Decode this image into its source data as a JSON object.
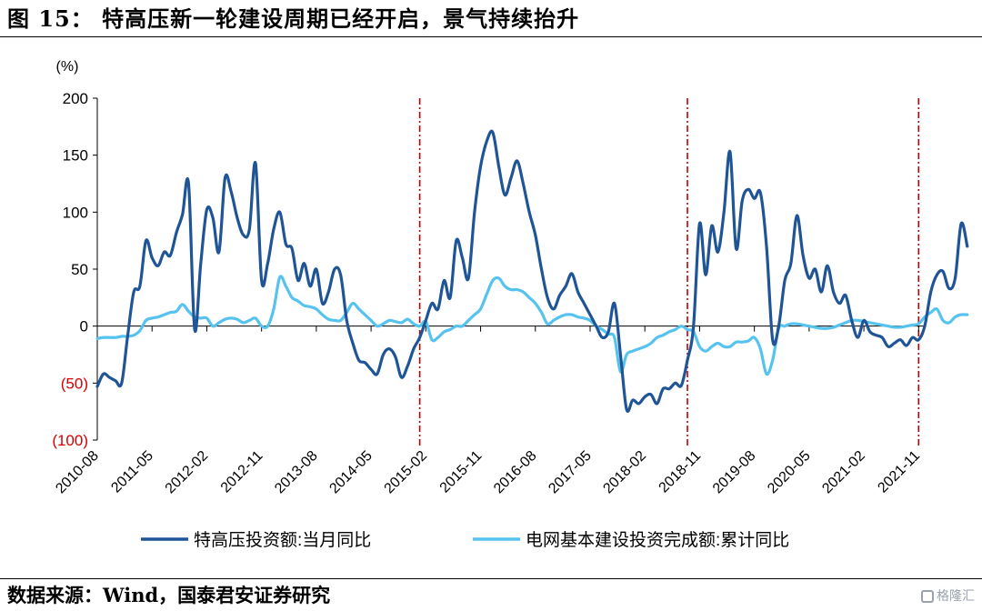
{
  "figure": {
    "title": "图 15：  特高压新一轮建设周期已经开启，景气持续抬升",
    "source": "数据来源：Wind，国泰君安证券研究",
    "watermark": "格隆汇"
  },
  "colors": {
    "series_dark": "#1f5597",
    "series_light": "#56c3ee",
    "negative_tick": "#d40000",
    "divider": "#c00000"
  },
  "chart_data": {
    "type": "line",
    "y_unit": "(%)",
    "ylim": [
      -100,
      200
    ],
    "y_ticks": [
      {
        "value": 200,
        "label": "200",
        "negative": false
      },
      {
        "value": 150,
        "label": "150",
        "negative": false
      },
      {
        "value": 100,
        "label": "100",
        "negative": false
      },
      {
        "value": 50,
        "label": "50",
        "negative": false
      },
      {
        "value": 0,
        "label": "0",
        "negative": false
      },
      {
        "value": -50,
        "label": "(50)",
        "negative": true
      },
      {
        "value": -100,
        "label": "(100)",
        "negative": true
      }
    ],
    "x_ticks": [
      "2010-08",
      "2011-05",
      "2012-02",
      "2012-11",
      "2013-08",
      "2014-05",
      "2015-02",
      "2015-11",
      "2016-08",
      "2017-05",
      "2018-02",
      "2018-11",
      "2019-08",
      "2020-05",
      "2021-02",
      "2021-11"
    ],
    "x_tick_every_months": 9,
    "x_start": "2010-08",
    "x_months": 136,
    "grid": false,
    "legend_position": "bottom",
    "vertical_markers": [
      "2015-01",
      "2018-09",
      "2021-11"
    ],
    "series": [
      {
        "name": "特高压投资额:当月同比",
        "color": "#1f5597",
        "points": [
          [
            "2010-08",
            -53
          ],
          [
            "2010-09",
            -42
          ],
          [
            "2010-10",
            -45
          ],
          [
            "2010-11",
            -48
          ],
          [
            "2010-12",
            -50
          ],
          [
            "2011-01",
            -8
          ],
          [
            "2011-02",
            30
          ],
          [
            "2011-03",
            35
          ],
          [
            "2011-04",
            75
          ],
          [
            "2011-05",
            60
          ],
          [
            "2011-06",
            53
          ],
          [
            "2011-07",
            65
          ],
          [
            "2011-08",
            62
          ],
          [
            "2011-09",
            82
          ],
          [
            "2011-10",
            98
          ],
          [
            "2011-11",
            125
          ],
          [
            "2011-12",
            -3
          ],
          [
            "2012-01",
            55
          ],
          [
            "2012-02",
            102
          ],
          [
            "2012-03",
            95
          ],
          [
            "2012-04",
            65
          ],
          [
            "2012-05",
            130
          ],
          [
            "2012-06",
            118
          ],
          [
            "2012-07",
            95
          ],
          [
            "2012-08",
            80
          ],
          [
            "2012-09",
            85
          ],
          [
            "2012-10",
            143
          ],
          [
            "2012-11",
            40
          ],
          [
            "2012-12",
            55
          ],
          [
            "2013-01",
            85
          ],
          [
            "2013-02",
            100
          ],
          [
            "2013-03",
            72
          ],
          [
            "2013-04",
            68
          ],
          [
            "2013-05",
            40
          ],
          [
            "2013-06",
            55
          ],
          [
            "2013-07",
            35
          ],
          [
            "2013-08",
            50
          ],
          [
            "2013-09",
            20
          ],
          [
            "2013-10",
            30
          ],
          [
            "2013-11",
            50
          ],
          [
            "2013-12",
            45
          ],
          [
            "2014-01",
            5
          ],
          [
            "2014-02",
            -15
          ],
          [
            "2014-03",
            -30
          ],
          [
            "2014-04",
            -32
          ],
          [
            "2014-05",
            -38
          ],
          [
            "2014-06",
            -42
          ],
          [
            "2014-07",
            -25
          ],
          [
            "2014-08",
            -20
          ],
          [
            "2014-09",
            -27
          ],
          [
            "2014-10",
            -45
          ],
          [
            "2014-11",
            -35
          ],
          [
            "2014-12",
            -20
          ],
          [
            "2015-01",
            -10
          ],
          [
            "2015-02",
            5
          ],
          [
            "2015-03",
            20
          ],
          [
            "2015-04",
            15
          ],
          [
            "2015-05",
            40
          ],
          [
            "2015-06",
            25
          ],
          [
            "2015-07",
            75
          ],
          [
            "2015-08",
            60
          ],
          [
            "2015-09",
            42
          ],
          [
            "2015-10",
            100
          ],
          [
            "2015-11",
            140
          ],
          [
            "2015-12",
            162
          ],
          [
            "2016-01",
            170
          ],
          [
            "2016-02",
            140
          ],
          [
            "2016-03",
            115
          ],
          [
            "2016-04",
            130
          ],
          [
            "2016-05",
            145
          ],
          [
            "2016-06",
            125
          ],
          [
            "2016-07",
            100
          ],
          [
            "2016-08",
            80
          ],
          [
            "2016-09",
            50
          ],
          [
            "2016-10",
            25
          ],
          [
            "2016-11",
            15
          ],
          [
            "2016-12",
            27
          ],
          [
            "2017-01",
            35
          ],
          [
            "2017-02",
            46
          ],
          [
            "2017-03",
            30
          ],
          [
            "2017-04",
            20
          ],
          [
            "2017-05",
            10
          ],
          [
            "2017-06",
            0
          ],
          [
            "2017-07",
            -10
          ],
          [
            "2017-08",
            -5
          ],
          [
            "2017-09",
            20
          ],
          [
            "2017-10",
            -25
          ],
          [
            "2017-11",
            -73
          ],
          [
            "2017-12",
            -65
          ],
          [
            "2018-01",
            -68
          ],
          [
            "2018-02",
            -62
          ],
          [
            "2018-03",
            -60
          ],
          [
            "2018-04",
            -68
          ],
          [
            "2018-05",
            -55
          ],
          [
            "2018-06",
            -55
          ],
          [
            "2018-07",
            -50
          ],
          [
            "2018-08",
            -52
          ],
          [
            "2018-09",
            -30
          ],
          [
            "2018-10",
            0
          ],
          [
            "2018-11",
            90
          ],
          [
            "2018-12",
            45
          ],
          [
            "2019-01",
            88
          ],
          [
            "2019-02",
            65
          ],
          [
            "2019-03",
            100
          ],
          [
            "2019-04",
            153
          ],
          [
            "2019-05",
            68
          ],
          [
            "2019-06",
            110
          ],
          [
            "2019-07",
            120
          ],
          [
            "2019-08",
            112
          ],
          [
            "2019-09",
            117
          ],
          [
            "2019-10",
            70
          ],
          [
            "2019-11",
            -12
          ],
          [
            "2019-12",
            0
          ],
          [
            "2020-01",
            40
          ],
          [
            "2020-02",
            55
          ],
          [
            "2020-03",
            97
          ],
          [
            "2020-04",
            62
          ],
          [
            "2020-05",
            42
          ],
          [
            "2020-06",
            50
          ],
          [
            "2020-07",
            30
          ],
          [
            "2020-08",
            53
          ],
          [
            "2020-09",
            30
          ],
          [
            "2020-10",
            20
          ],
          [
            "2020-11",
            27
          ],
          [
            "2020-12",
            5
          ],
          [
            "2021-01",
            -10
          ],
          [
            "2021-02",
            5
          ],
          [
            "2021-03",
            -5
          ],
          [
            "2021-04",
            -8
          ],
          [
            "2021-05",
            -10
          ],
          [
            "2021-06",
            -18
          ],
          [
            "2021-07",
            -15
          ],
          [
            "2021-08",
            -12
          ],
          [
            "2021-09",
            -17
          ],
          [
            "2021-10",
            -10
          ],
          [
            "2021-11",
            -12
          ],
          [
            "2021-12",
            0
          ],
          [
            "2022-01",
            30
          ],
          [
            "2022-02",
            45
          ],
          [
            "2022-03",
            48
          ],
          [
            "2022-04",
            33
          ],
          [
            "2022-05",
            42
          ],
          [
            "2022-06",
            90
          ],
          [
            "2022-07",
            70
          ]
        ]
      },
      {
        "name": "电网基本建设投资完成额:累计同比",
        "color": "#56c3ee",
        "points": [
          [
            "2010-08",
            -11
          ],
          [
            "2010-09",
            -10
          ],
          [
            "2010-10",
            -10
          ],
          [
            "2010-11",
            -10
          ],
          [
            "2010-12",
            -9
          ],
          [
            "2011-01",
            -9
          ],
          [
            "2011-02",
            -8
          ],
          [
            "2011-03",
            -4
          ],
          [
            "2011-04",
            5
          ],
          [
            "2011-05",
            7
          ],
          [
            "2011-06",
            8
          ],
          [
            "2011-07",
            10
          ],
          [
            "2011-08",
            12
          ],
          [
            "2011-09",
            13
          ],
          [
            "2011-10",
            19
          ],
          [
            "2011-11",
            13
          ],
          [
            "2011-12",
            8
          ],
          [
            "2012-01",
            7
          ],
          [
            "2012-02",
            7
          ],
          [
            "2012-03",
            0
          ],
          [
            "2012-04",
            3
          ],
          [
            "2012-05",
            6
          ],
          [
            "2012-06",
            7
          ],
          [
            "2012-07",
            6
          ],
          [
            "2012-08",
            3
          ],
          [
            "2012-09",
            5
          ],
          [
            "2012-10",
            7
          ],
          [
            "2012-11",
            0
          ],
          [
            "2012-12",
            0
          ],
          [
            "2013-01",
            15
          ],
          [
            "2013-02",
            43
          ],
          [
            "2013-03",
            35
          ],
          [
            "2013-04",
            25
          ],
          [
            "2013-05",
            22
          ],
          [
            "2013-06",
            18
          ],
          [
            "2013-07",
            17
          ],
          [
            "2013-08",
            15
          ],
          [
            "2013-09",
            10
          ],
          [
            "2013-10",
            6
          ],
          [
            "2013-11",
            5
          ],
          [
            "2013-12",
            5
          ],
          [
            "2014-01",
            12
          ],
          [
            "2014-02",
            20
          ],
          [
            "2014-03",
            15
          ],
          [
            "2014-04",
            10
          ],
          [
            "2014-05",
            5
          ],
          [
            "2014-06",
            0
          ],
          [
            "2014-07",
            2
          ],
          [
            "2014-08",
            5
          ],
          [
            "2014-09",
            4
          ],
          [
            "2014-10",
            3
          ],
          [
            "2014-11",
            6
          ],
          [
            "2014-12",
            2
          ],
          [
            "2015-01",
            0
          ],
          [
            "2015-02",
            4
          ],
          [
            "2015-03",
            -12
          ],
          [
            "2015-04",
            -10
          ],
          [
            "2015-05",
            -5
          ],
          [
            "2015-06",
            -3
          ],
          [
            "2015-07",
            0
          ],
          [
            "2015-08",
            0
          ],
          [
            "2015-09",
            5
          ],
          [
            "2015-10",
            10
          ],
          [
            "2015-11",
            15
          ],
          [
            "2015-12",
            28
          ],
          [
            "2016-01",
            40
          ],
          [
            "2016-02",
            42
          ],
          [
            "2016-03",
            35
          ],
          [
            "2016-04",
            32
          ],
          [
            "2016-05",
            32
          ],
          [
            "2016-06",
            30
          ],
          [
            "2016-07",
            25
          ],
          [
            "2016-08",
            20
          ],
          [
            "2016-09",
            12
          ],
          [
            "2016-10",
            2
          ],
          [
            "2016-11",
            5
          ],
          [
            "2016-12",
            8
          ],
          [
            "2017-01",
            10
          ],
          [
            "2017-02",
            10
          ],
          [
            "2017-03",
            8
          ],
          [
            "2017-04",
            7
          ],
          [
            "2017-05",
            5
          ],
          [
            "2017-06",
            0
          ],
          [
            "2017-07",
            -3
          ],
          [
            "2017-08",
            -7
          ],
          [
            "2017-09",
            -10
          ],
          [
            "2017-10",
            -40
          ],
          [
            "2017-11",
            -25
          ],
          [
            "2017-12",
            -22
          ],
          [
            "2018-01",
            -20
          ],
          [
            "2018-02",
            -18
          ],
          [
            "2018-03",
            -15
          ],
          [
            "2018-04",
            -10
          ],
          [
            "2018-05",
            -8
          ],
          [
            "2018-06",
            -5
          ],
          [
            "2018-07",
            -3
          ],
          [
            "2018-08",
            0
          ],
          [
            "2018-09",
            -3
          ],
          [
            "2018-10",
            -5
          ],
          [
            "2018-11",
            -18
          ],
          [
            "2018-12",
            -22
          ],
          [
            "2019-01",
            -18
          ],
          [
            "2019-02",
            -15
          ],
          [
            "2019-03",
            -18
          ],
          [
            "2019-04",
            -18
          ],
          [
            "2019-05",
            -14
          ],
          [
            "2019-06",
            -14
          ],
          [
            "2019-07",
            -13
          ],
          [
            "2019-08",
            -10
          ],
          [
            "2019-09",
            -20
          ],
          [
            "2019-10",
            -42
          ],
          [
            "2019-11",
            -30
          ],
          [
            "2019-12",
            -2
          ],
          [
            "2020-01",
            0
          ],
          [
            "2020-02",
            2
          ],
          [
            "2020-03",
            2
          ],
          [
            "2020-04",
            1
          ],
          [
            "2020-05",
            0
          ],
          [
            "2020-06",
            -1
          ],
          [
            "2020-07",
            -2
          ],
          [
            "2020-08",
            -2
          ],
          [
            "2020-09",
            -1
          ],
          [
            "2020-10",
            1
          ],
          [
            "2020-11",
            3
          ],
          [
            "2020-12",
            5
          ],
          [
            "2021-01",
            5
          ],
          [
            "2021-02",
            4
          ],
          [
            "2021-03",
            3
          ],
          [
            "2021-04",
            2
          ],
          [
            "2021-05",
            1
          ],
          [
            "2021-06",
            0
          ],
          [
            "2021-07",
            -1
          ],
          [
            "2021-08",
            -1
          ],
          [
            "2021-09",
            0
          ],
          [
            "2021-10",
            1
          ],
          [
            "2021-11",
            2
          ],
          [
            "2021-12",
            8
          ],
          [
            "2022-01",
            12
          ],
          [
            "2022-02",
            15
          ],
          [
            "2022-03",
            5
          ],
          [
            "2022-04",
            3
          ],
          [
            "2022-05",
            8
          ],
          [
            "2022-06",
            10
          ],
          [
            "2022-07",
            10
          ]
        ]
      }
    ]
  }
}
